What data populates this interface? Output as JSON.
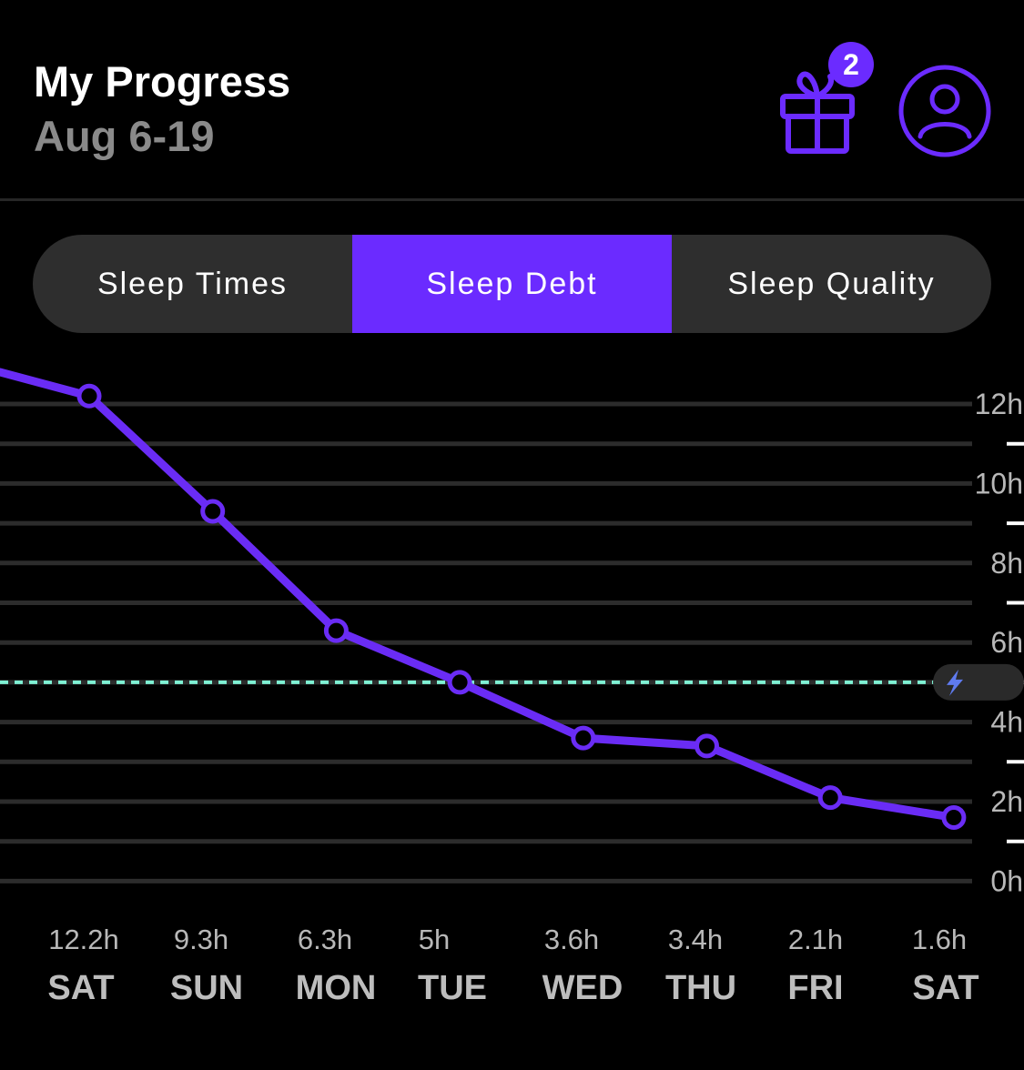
{
  "header": {
    "title": "My Progress",
    "date_range": "Aug 6-19",
    "notification_count": "2"
  },
  "tabs": [
    {
      "label": "Sleep Times",
      "active": false
    },
    {
      "label": "Sleep Debt",
      "active": true
    },
    {
      "label": "Sleep Quality",
      "active": false
    }
  ],
  "colors": {
    "accent": "#6b2bff",
    "line": "#6a2cf5",
    "target_line": "#7ef0d3",
    "grid": "#2c2c2c",
    "bolt": "#5f7bf0"
  },
  "chart_data": {
    "type": "line",
    "categories": [
      "SAT",
      "SUN",
      "MON",
      "TUE",
      "WED",
      "THU",
      "FRI",
      "SAT"
    ],
    "value_labels": [
      "12.2h",
      "9.3h",
      "6.3h",
      "5h",
      "3.6h",
      "3.4h",
      "2.1h",
      "1.6h"
    ],
    "values": [
      12.2,
      9.3,
      6.3,
      5.0,
      3.6,
      3.4,
      2.1,
      1.6
    ],
    "leading_value": 12.8,
    "y_ticks": [
      "0h",
      "2h",
      "4h",
      "6h",
      "8h",
      "10h",
      "12h"
    ],
    "ylim": [
      0,
      12
    ],
    "target_line": {
      "value": 5,
      "icon": "lightning-bolt-icon"
    },
    "grid": true,
    "y_axis_position": "right"
  }
}
